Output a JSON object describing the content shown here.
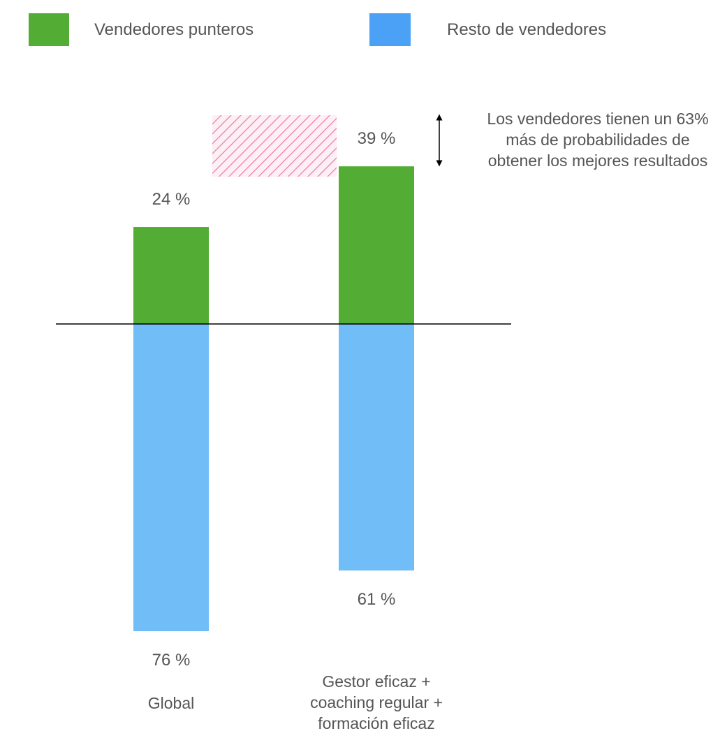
{
  "chart_data": {
    "type": "bar",
    "categories": [
      "Global",
      "Gestor eficaz + coaching regular + formación eficaz"
    ],
    "category_lines": [
      [
        "Global"
      ],
      [
        "Gestor eficaz +",
        "coaching regular +",
        "formación eficaz"
      ]
    ],
    "series": [
      {
        "name": "Vendedores punteros",
        "values": [
          24,
          39
        ],
        "labels": [
          "24 %",
          "39 %"
        ],
        "color": "#53ad34"
      },
      {
        "name": "Resto de vendedores",
        "values": [
          76,
          61
        ],
        "labels": [
          "76 %",
          "61 %"
        ],
        "color": "#70bdf8"
      }
    ],
    "legend_colors": [
      "#53ad34",
      "#4aa1f6"
    ],
    "legend_position": "top",
    "annotation": {
      "lines": [
        "Los vendedores tienen un 63%",
        "más de probabilidades de",
        "obtener los mejores resultados"
      ],
      "highlight_color": "#f07aaa"
    },
    "baseline": "diverging",
    "grid": false
  }
}
